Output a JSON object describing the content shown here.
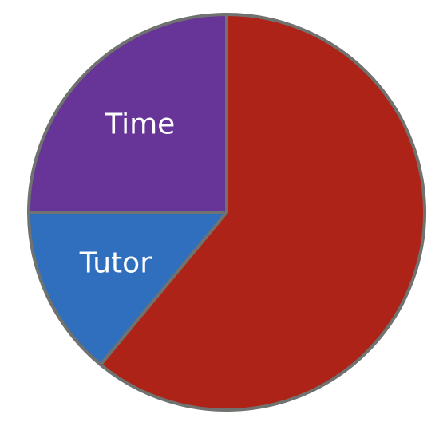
{
  "chart_data": {
    "type": "pie",
    "categories": [
      null,
      "Tutor",
      "Time"
    ],
    "values": [
      61,
      14,
      25
    ],
    "colors": [
      "#ae2318",
      "#2f6fbe",
      "#673597"
    ],
    "edge_color": "#6f726f"
  }
}
